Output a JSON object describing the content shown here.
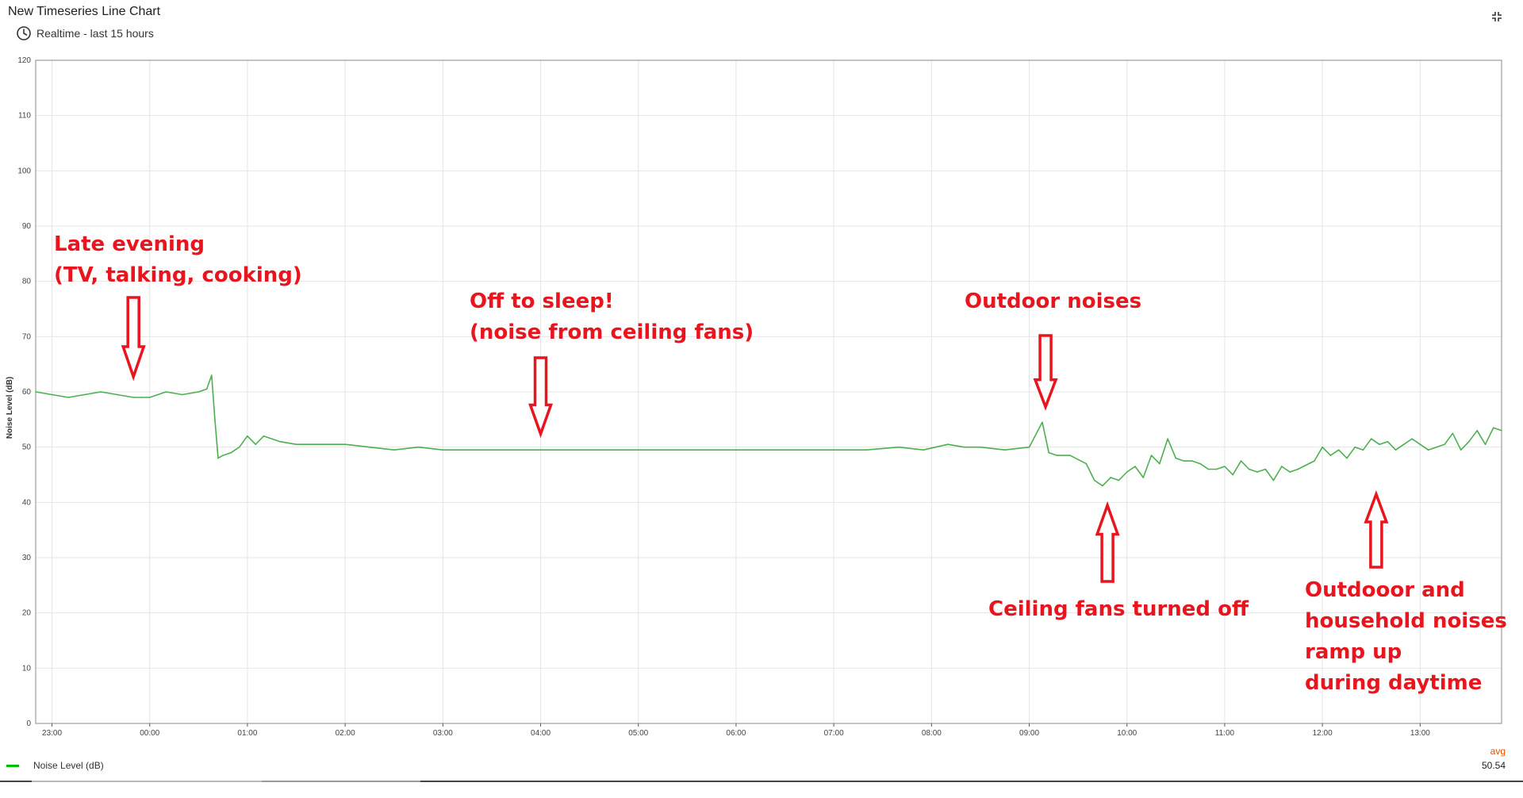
{
  "widget": {
    "title": "New Timeseries Line Chart",
    "time_window": "Realtime - last 15 hours"
  },
  "icons": {
    "time": "clock-icon",
    "fullscreen": "fullscreen-icon"
  },
  "colors": {
    "series": "#4caf50",
    "legend_swatch": "#00c000",
    "annotation": "#e8141e",
    "agg_label": "#e65100"
  },
  "legend": {
    "items": [
      {
        "label": "Noise Level (dB)",
        "agg_label": "avg",
        "agg_value": "50.54"
      }
    ]
  },
  "annotations": [
    {
      "text": "Late evening\n(TV, talking, cooking)"
    },
    {
      "text": "Off to sleep!\n(noise from ceiling fans)"
    },
    {
      "text": "Outdoor noises"
    },
    {
      "text": "Ceiling fans turned off"
    },
    {
      "text": "Outdooor and\nhousehold noises\nramp up\nduring daytime"
    }
  ],
  "chart_data": {
    "type": "line",
    "ylabel": "Noise Level (dB)",
    "ylim": [
      0,
      120
    ],
    "yticks": [
      0,
      10,
      20,
      30,
      40,
      50,
      60,
      70,
      80,
      90,
      100,
      110,
      120
    ],
    "xlim": [
      "22:50",
      "13:50"
    ],
    "xticks": [
      "23:00",
      "00:00",
      "01:00",
      "02:00",
      "03:00",
      "04:00",
      "05:00",
      "06:00",
      "07:00",
      "08:00",
      "09:00",
      "10:00",
      "11:00",
      "12:00",
      "13:00"
    ],
    "grid": true,
    "legend_position": "bottom-left",
    "series": [
      {
        "name": "Noise Level (dB)",
        "x": [
          "22:50",
          "23:00",
          "23:10",
          "23:20",
          "23:30",
          "23:40",
          "23:50",
          "23:55",
          "00:00",
          "00:10",
          "00:20",
          "00:30",
          "00:35",
          "00:38",
          "00:40",
          "00:42",
          "00:45",
          "00:50",
          "00:55",
          "01:00",
          "01:05",
          "01:10",
          "01:15",
          "01:20",
          "01:30",
          "01:40",
          "01:50",
          "02:00",
          "02:15",
          "02:30",
          "02:45",
          "03:00",
          "03:20",
          "03:40",
          "04:00",
          "04:20",
          "04:40",
          "05:00",
          "05:20",
          "05:40",
          "06:00",
          "06:20",
          "06:40",
          "07:00",
          "07:20",
          "07:40",
          "07:55",
          "08:10",
          "08:20",
          "08:30",
          "08:45",
          "09:00",
          "09:08",
          "09:12",
          "09:17",
          "09:25",
          "09:35",
          "09:40",
          "09:45",
          "09:50",
          "09:55",
          "10:00",
          "10:05",
          "10:10",
          "10:15",
          "10:20",
          "10:25",
          "10:30",
          "10:35",
          "10:40",
          "10:45",
          "10:50",
          "10:55",
          "11:00",
          "11:05",
          "11:10",
          "11:15",
          "11:20",
          "11:25",
          "11:30",
          "11:35",
          "11:40",
          "11:45",
          "11:55",
          "12:00",
          "12:05",
          "12:10",
          "12:15",
          "12:20",
          "12:25",
          "12:30",
          "12:35",
          "12:40",
          "12:45",
          "12:50",
          "12:55",
          "13:00",
          "13:05",
          "13:10",
          "13:15",
          "13:20",
          "13:25",
          "13:30",
          "13:35",
          "13:40",
          "13:45",
          "13:50"
        ],
        "values": [
          60,
          59.5,
          59,
          59.5,
          60,
          59.5,
          59,
          59,
          59,
          60,
          59.5,
          60,
          60.5,
          63,
          55,
          48,
          48.5,
          49,
          50,
          52,
          50.5,
          52,
          51.5,
          51,
          50.5,
          50.5,
          50.5,
          50.5,
          50,
          49.5,
          50,
          49.5,
          49.5,
          49.5,
          49.5,
          49.5,
          49.5,
          49.5,
          49.5,
          49.5,
          49.5,
          49.5,
          49.5,
          49.5,
          49.5,
          50,
          49.5,
          50.5,
          50,
          50,
          49.5,
          50,
          54.5,
          49,
          48.5,
          48.5,
          47,
          44,
          43,
          44.5,
          44,
          45.5,
          46.5,
          44.5,
          48.5,
          47,
          51.5,
          48,
          47.5,
          47.5,
          47,
          46,
          46,
          46.5,
          45,
          47.5,
          46,
          45.5,
          46,
          44,
          46.5,
          45.5,
          46,
          47.5,
          50,
          48.5,
          49.5,
          48,
          50,
          49.5,
          51.5,
          50.5,
          51,
          49.5,
          50.5,
          51.5,
          50.5,
          49.5,
          50,
          50.5,
          52.5,
          49.5,
          51,
          53,
          50.5,
          53.5,
          53
        ]
      }
    ],
    "annotations": [
      "Late evening\n(TV, talking, cooking)",
      "Off to sleep!\n(noise from ceiling fans)",
      "Outdoor noises",
      "Ceiling fans turned off",
      "Outdooor and\nhousehold noises\nramp up\nduring daytime"
    ]
  }
}
